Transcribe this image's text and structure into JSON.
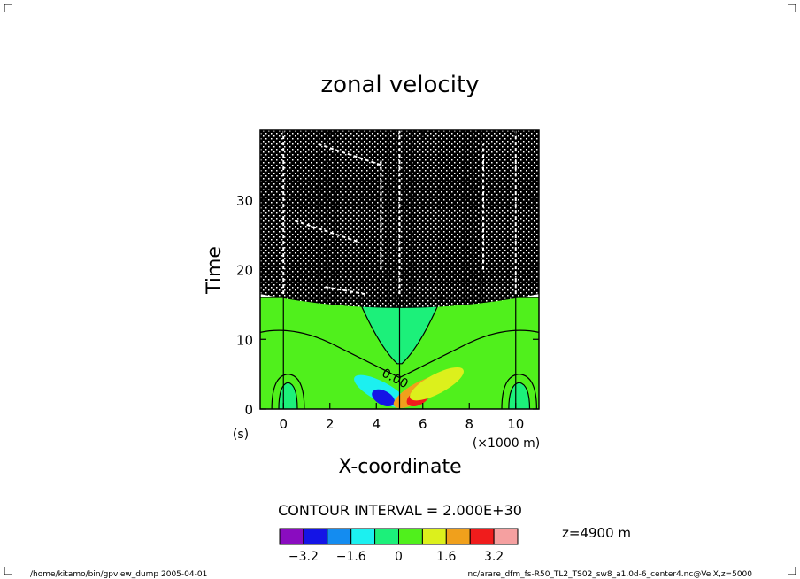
{
  "chart_data": {
    "type": "heatmap",
    "title": "zonal velocity",
    "xlabel": "X-coordinate",
    "ylabel": "Time",
    "x_unit": "(×1000 m)",
    "y_unit": "(s)",
    "xlim": [
      -1,
      11
    ],
    "ylim": [
      0,
      40
    ],
    "x_ticks": [
      "0",
      "2",
      "4",
      "6",
      "8",
      "10"
    ],
    "y_ticks": [
      "0",
      "10",
      "20",
      "30"
    ],
    "contour_interval_text": "CONTOUR INTERVAL = 2.000E+30",
    "contour_label": "0.00",
    "level_text": "z=4900  m",
    "colorbar": {
      "colors": [
        "#8a0cc0",
        "#1414e6",
        "#148cf0",
        "#1cf0f0",
        "#1cf07a",
        "#50f01c",
        "#dcf01c",
        "#f0a01c",
        "#f01c1c",
        "#f5a0a0"
      ],
      "tick_labels": [
        "−3.2",
        "−1.6",
        "0",
        "1.6",
        "3.2"
      ],
      "tick_values": [
        -3.2,
        -1.6,
        0,
        1.6,
        3.2
      ],
      "range": [
        -4,
        4
      ]
    },
    "regions": {
      "background_level": 0.4,
      "lower_zero_band": [
        0,
        16
      ],
      "noise_region": [
        16.5,
        40
      ]
    },
    "blobs": [
      {
        "x": 4.2,
        "y": 2.5,
        "value": -1.6
      },
      {
        "x": 4.3,
        "y": 1.6,
        "value": -2.8
      },
      {
        "x": 5.9,
        "y": 2.5,
        "value": 1.6
      },
      {
        "x": 5.8,
        "y": 1.6,
        "value": 2.8
      },
      {
        "x": 6.6,
        "y": 3.6,
        "value": 1.0
      }
    ]
  },
  "footer": {
    "left": "/home/kitamo/bin/gpview_dump  2005-04-01",
    "right": "nc/arare_dfm_fs-R50_TL2_TS02_sw8_a1.0d-6_center4.nc@VelX,z=5000"
  }
}
